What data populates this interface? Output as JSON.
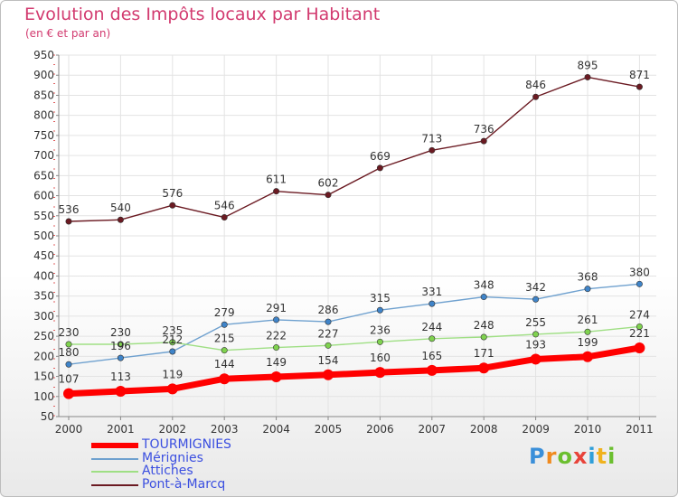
{
  "title": "Evolution des Impôts locaux par Habitant",
  "subtitle": "(en € et par an)",
  "logo": {
    "text": "Proxiti",
    "letter_colors": [
      "#3a8fd9",
      "#f08a1e",
      "#6bbf2f",
      "#e8433a",
      "#2f9fd9",
      "#f0b21e",
      "#6bbf2f"
    ]
  },
  "chart_data": {
    "type": "line",
    "x": [
      "2000",
      "2001",
      "2002",
      "2003",
      "2004",
      "2005",
      "2006",
      "2007",
      "2008",
      "2009",
      "2010",
      "2011"
    ],
    "ylim": [
      50,
      950
    ],
    "yticks": [
      "50",
      "100",
      "150",
      "200",
      "250",
      "300",
      "350",
      "400",
      "450",
      "500",
      "550",
      "600",
      "650",
      "700",
      "750",
      "800",
      "850",
      "900",
      "950"
    ],
    "grid": true,
    "legend_position": "bottom-left",
    "series": [
      {
        "name": "Pont-à-Marcq",
        "color": "#6b1a22",
        "marker": "#6b1a22",
        "values": [
          536,
          540,
          576,
          546,
          611,
          602,
          669,
          713,
          736,
          846,
          895,
          871
        ]
      },
      {
        "name": "Mérignies",
        "color": "#6fa1cf",
        "marker": "#3f84c9",
        "values": [
          180,
          196,
          212,
          279,
          291,
          286,
          315,
          331,
          348,
          342,
          368,
          380
        ]
      },
      {
        "name": "Attiches",
        "color": "#9fdf84",
        "marker": "#7fd24f",
        "values": [
          230,
          230,
          235,
          215,
          222,
          227,
          236,
          244,
          248,
          255,
          261,
          274
        ]
      },
      {
        "name": "TOURMIGNIES",
        "color": "#ff0000",
        "marker": "#ff0000",
        "values": [
          107,
          113,
          119,
          144,
          149,
          154,
          160,
          165,
          171,
          193,
          199,
          221
        ]
      }
    ],
    "legend_order": [
      "TOURMIGNIES",
      "Mérignies",
      "Attiches",
      "Pont-à-Marcq"
    ]
  }
}
